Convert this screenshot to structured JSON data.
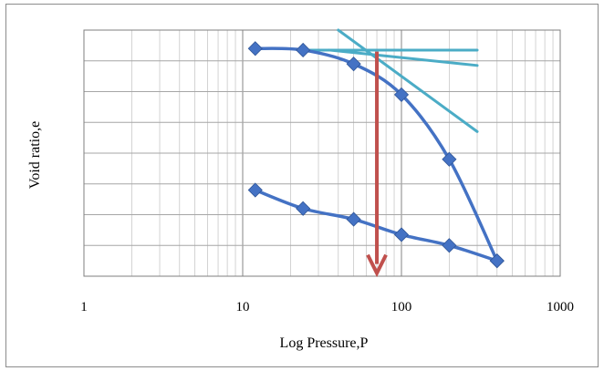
{
  "chart_data": {
    "type": "scatter",
    "title": "",
    "xlabel": "Log Pressure,P",
    "ylabel": "Void ratio,e",
    "xscale": "log",
    "xlim": [
      1,
      1000
    ],
    "xticks": [
      "1",
      "10",
      "100",
      "1000"
    ],
    "ylim": [
      0,
      8
    ],
    "yticks_labeled": false,
    "grid": true,
    "legend": "none",
    "series": [
      {
        "role": "loading",
        "color": "#4472C4",
        "marker": "diamond",
        "x": [
          12,
          24,
          50,
          100,
          200,
          400
        ],
        "y": [
          7.4,
          7.35,
          6.9,
          5.9,
          3.8,
          0.5
        ]
      },
      {
        "role": "unloading",
        "color": "#4472C4",
        "marker": "diamond",
        "x": [
          12,
          24,
          50,
          100,
          200,
          400
        ],
        "y": [
          2.8,
          2.2,
          1.85,
          1.35,
          1.0,
          0.5
        ]
      }
    ],
    "construction_lines": [
      {
        "color": "#4BACC6",
        "x": [
          24,
          300
        ],
        "y": [
          7.35,
          7.35
        ]
      },
      {
        "color": "#4BACC6",
        "x": [
          35,
          300
        ],
        "y": [
          7.35,
          6.85
        ]
      },
      {
        "color": "#4BACC6",
        "x": [
          40,
          300
        ],
        "y": [
          8.0,
          4.7
        ]
      }
    ],
    "arrow": {
      "color": "#C0504D",
      "x": 70,
      "y_from": 7.3,
      "y_to": 0.1,
      "direction": "down"
    }
  }
}
